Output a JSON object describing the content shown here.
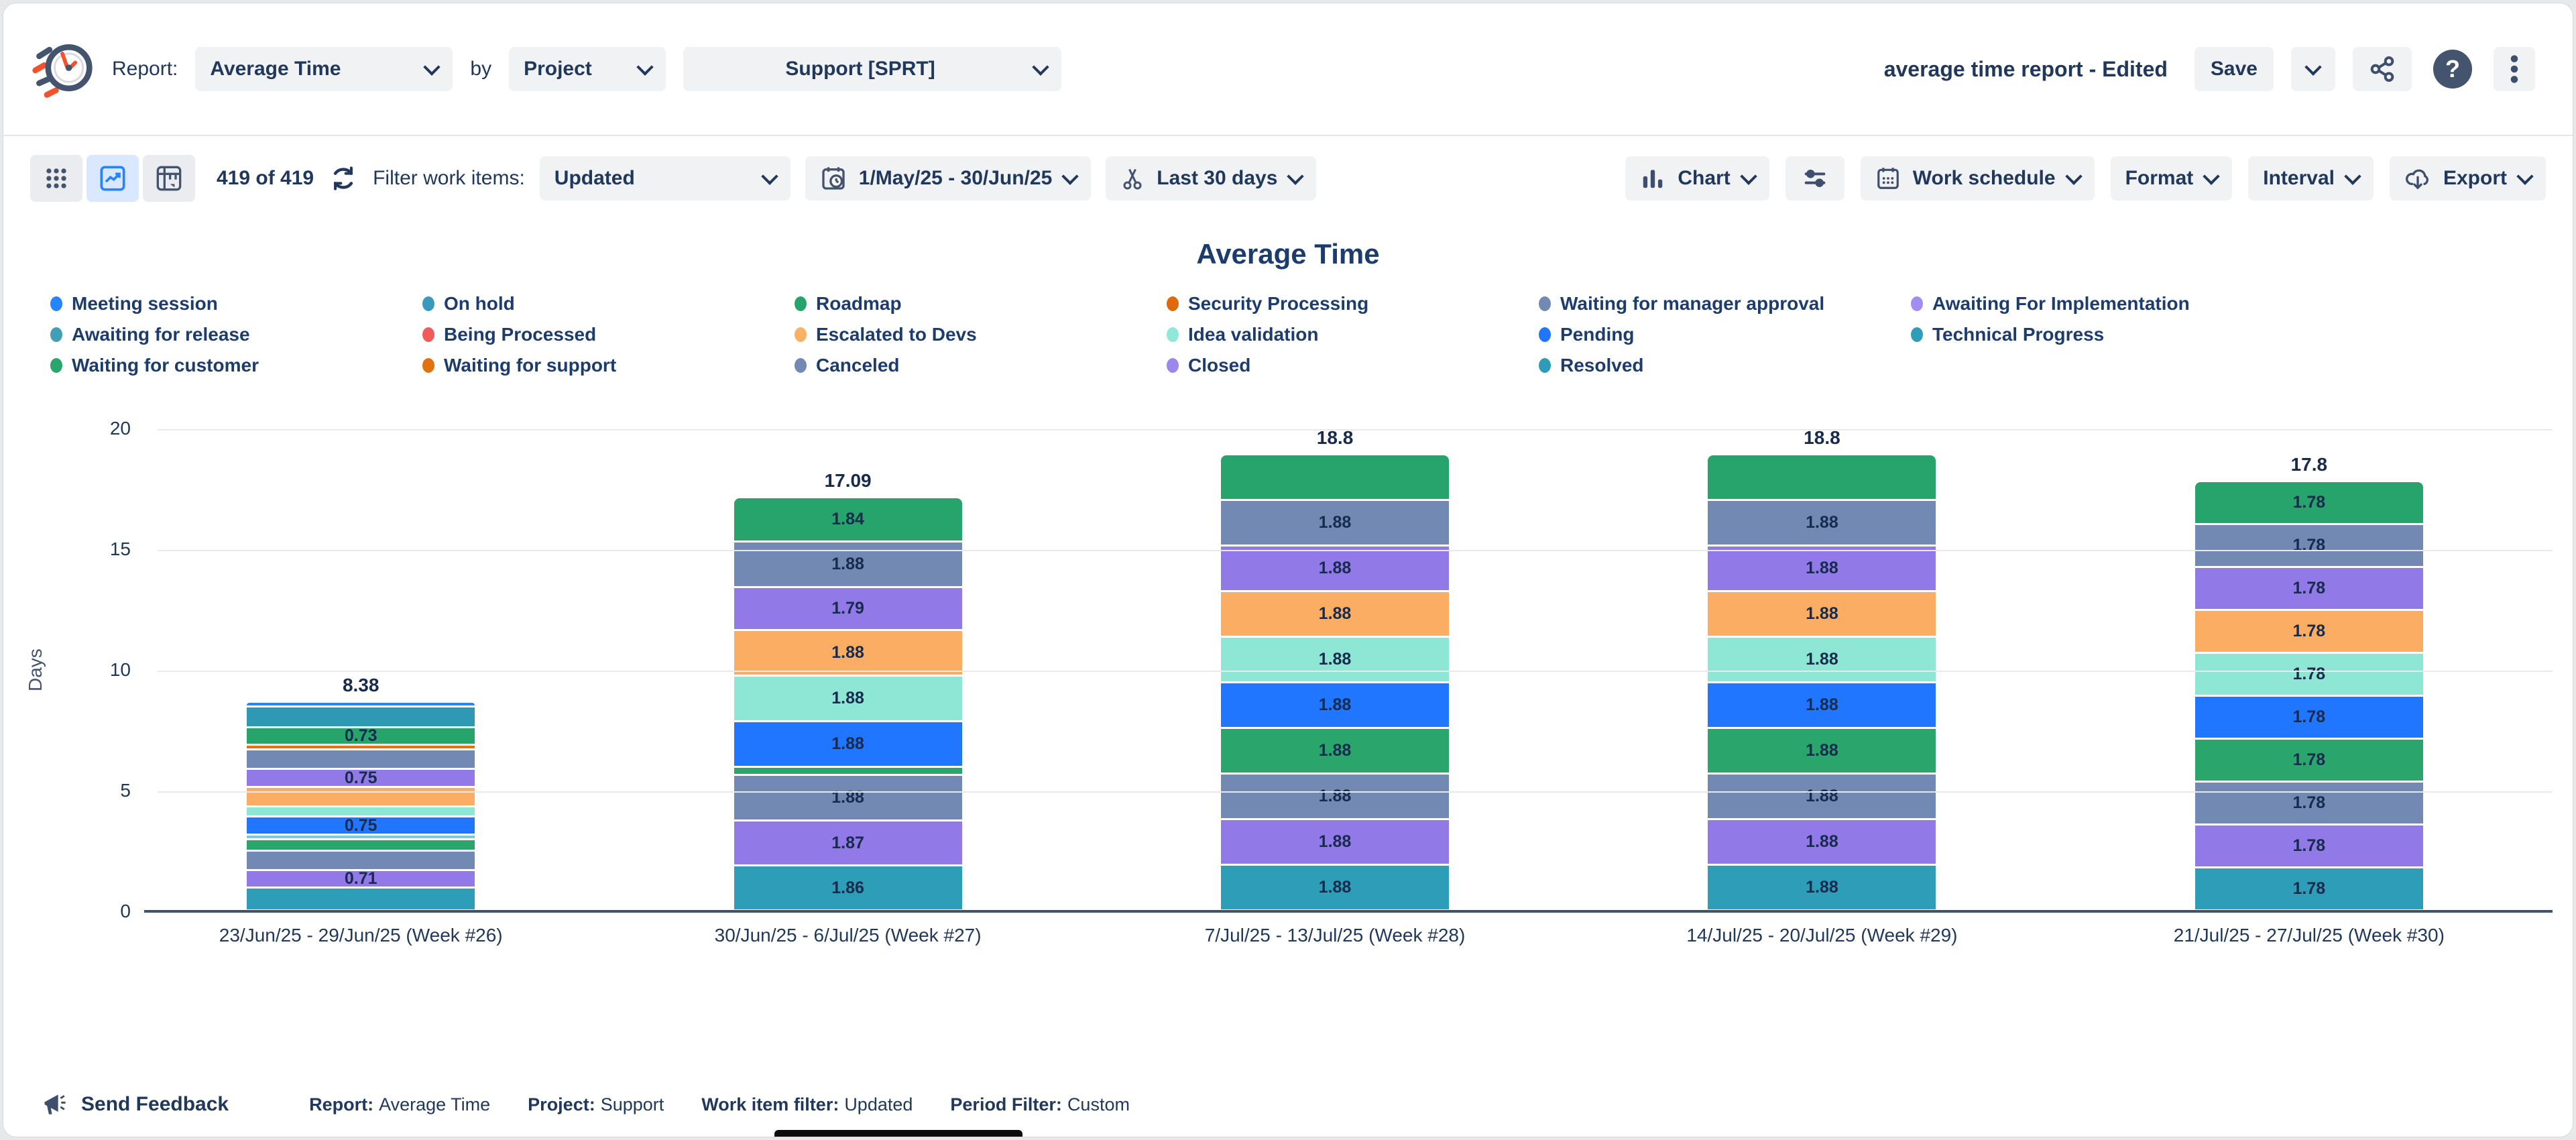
{
  "header": {
    "report_label": "Report:",
    "report_value": "Average Time",
    "by_label": "by",
    "group_value": "Project",
    "project_value": "Support [SPRT]",
    "doc_title": "average time report - Edited",
    "save_label": "Save"
  },
  "toolbar": {
    "count_text": "419 of 419",
    "filter_label": "Filter work items:",
    "filter_value": "Updated",
    "date_range": "1/May/25 - 30/Jun/25",
    "trim_value": "Last 30 days",
    "chart_label": "Chart",
    "work_schedule_label": "Work schedule",
    "format_label": "Format",
    "interval_label": "Interval",
    "export_label": "Export"
  },
  "legend": {
    "items": [
      {
        "label": "Meeting session",
        "color": "#2684ff"
      },
      {
        "label": "On hold",
        "color": "#3a99bd"
      },
      {
        "label": "Roadmap",
        "color": "#27a36c"
      },
      {
        "label": "Security Processing",
        "color": "#e0690b"
      },
      {
        "label": "Waiting for manager approval",
        "color": "#7289b4"
      },
      {
        "label": "Awaiting For Implementation",
        "color": "#a18df2"
      },
      {
        "label": "Awaiting for release",
        "color": "#429eb5"
      },
      {
        "label": "Being Processed",
        "color": "#f15b5b"
      },
      {
        "label": "Escalated to Devs",
        "color": "#fbb163"
      },
      {
        "label": "Idea validation",
        "color": "#8fe8d8"
      },
      {
        "label": "Pending",
        "color": "#2176ff"
      },
      {
        "label": "Technical Progress",
        "color": "#2f9dba"
      },
      {
        "label": "Waiting for customer",
        "color": "#2aa56c"
      },
      {
        "label": "Waiting for support",
        "color": "#e2710f"
      },
      {
        "label": "Canceled",
        "color": "#7289b4"
      },
      {
        "label": "Closed",
        "color": "#9d86ec"
      },
      {
        "label": "Resolved",
        "color": "#2e9cb8"
      }
    ]
  },
  "chart_data": {
    "type": "stacked-bar",
    "title": "Average Time",
    "ylabel": "Days",
    "ylim": [
      0,
      20
    ],
    "yticks": [
      0,
      5,
      10,
      15,
      20
    ],
    "grid": true,
    "legend_position": "top",
    "categories": [
      "23/Jun/25 - 29/Jun/25 (Week #26)",
      "30/Jun/25 - 6/Jul/25 (Week #27)",
      "7/Jul/25 - 13/Jul/25 (Week #28)",
      "14/Jul/25 - 20/Jul/25 (Week #29)",
      "21/Jul/25 - 27/Jul/25 (Week #30)"
    ],
    "totals": [
      "8.38",
      "17.09",
      "18.8",
      "18.8",
      "17.8"
    ],
    "segments_order_note": "segments listed top to bottom of each stack",
    "bars": [
      {
        "category": "23/Jun/25 - 29/Jun/25 (Week #26)",
        "total": "8.38",
        "segments": [
          {
            "status": "Meeting session",
            "color": "#2684ff",
            "value": 0.12,
            "label": ""
          },
          {
            "status": "On hold",
            "color": "#2e98b5",
            "value": 0.85,
            "label": ""
          },
          {
            "status": "Roadmap",
            "color": "#27a36c",
            "value": 0.73,
            "label": "0.73"
          },
          {
            "status": "Security Processing",
            "color": "#e8720e",
            "value": 0.12,
            "label": ""
          },
          {
            "status": "Waiting for manager approval",
            "color": "#7289b4",
            "value": 0.8,
            "label": ""
          },
          {
            "status": "Awaiting For Implementation",
            "color": "#9179e8",
            "value": 0.75,
            "label": "0.75"
          },
          {
            "status": "Escalated to Devs",
            "color": "#fbae63",
            "value": 0.8,
            "label": ""
          },
          {
            "status": "Idea validation",
            "color": "#8ee6d4",
            "value": 0.42,
            "label": ""
          },
          {
            "status": "Pending",
            "color": "#2176ff",
            "value": 0.75,
            "label": "0.75"
          },
          {
            "status": "Technical Progress",
            "color": "#7fc9db",
            "value": 0.12,
            "label": ""
          },
          {
            "status": "Waiting for customer",
            "color": "#2aa56c",
            "value": 0.47,
            "label": ""
          },
          {
            "status": "Canceled",
            "color": "#7289b4",
            "value": 0.8,
            "label": ""
          },
          {
            "status": "Closed",
            "color": "#9179e8",
            "value": 0.71,
            "label": "0.71"
          },
          {
            "status": "Resolved",
            "color": "#2d9db8",
            "value": 0.94,
            "label": ""
          }
        ]
      },
      {
        "category": "30/Jun/25 - 6/Jul/25 (Week #27)",
        "total": "17.09",
        "segments": [
          {
            "status": "Roadmap",
            "color": "#27a36c",
            "value": 1.84,
            "label": "1.84"
          },
          {
            "status": "Waiting for manager approval",
            "color": "#7289b4",
            "value": 1.88,
            "label": "1.88"
          },
          {
            "status": "Awaiting For Implementation",
            "color": "#9179e8",
            "value": 1.79,
            "label": "1.79"
          },
          {
            "status": "Escalated to Devs",
            "color": "#fbae63",
            "value": 1.88,
            "label": "1.88"
          },
          {
            "status": "Idea validation",
            "color": "#8ee6d4",
            "value": 1.88,
            "label": "1.88"
          },
          {
            "status": "Pending",
            "color": "#2176ff",
            "value": 1.88,
            "label": "1.88"
          },
          {
            "status": "Waiting for customer",
            "color": "#2aa56c",
            "value": 0.33,
            "label": ""
          },
          {
            "status": "Canceled",
            "color": "#7289b4",
            "value": 1.88,
            "label": "1.88"
          },
          {
            "status": "Closed",
            "color": "#9179e8",
            "value": 1.87,
            "label": "1.87"
          },
          {
            "status": "Resolved",
            "color": "#2d9db8",
            "value": 1.86,
            "label": "1.86"
          }
        ]
      },
      {
        "category": "7/Jul/25 - 13/Jul/25 (Week #28)",
        "total": "18.8",
        "segments": [
          {
            "status": "Roadmap",
            "color": "#27a36c",
            "value": 1.88,
            "label": ""
          },
          {
            "status": "Waiting for manager approval",
            "color": "#7289b4",
            "value": 1.88,
            "label": "1.88"
          },
          {
            "status": "Awaiting For Implementation",
            "color": "#9179e8",
            "value": 1.88,
            "label": "1.88"
          },
          {
            "status": "Escalated to Devs",
            "color": "#fbae63",
            "value": 1.88,
            "label": "1.88"
          },
          {
            "status": "Idea validation",
            "color": "#8ee6d4",
            "value": 1.88,
            "label": "1.88"
          },
          {
            "status": "Pending",
            "color": "#2176ff",
            "value": 1.88,
            "label": "1.88"
          },
          {
            "status": "Waiting for customer",
            "color": "#2aa56c",
            "value": 1.88,
            "label": "1.88"
          },
          {
            "status": "Canceled",
            "color": "#7289b4",
            "value": 1.88,
            "label": "1.88"
          },
          {
            "status": "Closed",
            "color": "#9179e8",
            "value": 1.88,
            "label": "1.88"
          },
          {
            "status": "Resolved",
            "color": "#2d9db8",
            "value": 1.88,
            "label": "1.88"
          }
        ]
      },
      {
        "category": "14/Jul/25 - 20/Jul/25 (Week #29)",
        "total": "18.8",
        "segments": [
          {
            "status": "Roadmap",
            "color": "#27a36c",
            "value": 1.88,
            "label": ""
          },
          {
            "status": "Waiting for manager approval",
            "color": "#7289b4",
            "value": 1.88,
            "label": "1.88"
          },
          {
            "status": "Awaiting For Implementation",
            "color": "#9179e8",
            "value": 1.88,
            "label": "1.88"
          },
          {
            "status": "Escalated to Devs",
            "color": "#fbae63",
            "value": 1.88,
            "label": "1.88"
          },
          {
            "status": "Idea validation",
            "color": "#8ee6d4",
            "value": 1.88,
            "label": "1.88"
          },
          {
            "status": "Pending",
            "color": "#2176ff",
            "value": 1.88,
            "label": "1.88"
          },
          {
            "status": "Waiting for customer",
            "color": "#2aa56c",
            "value": 1.88,
            "label": "1.88"
          },
          {
            "status": "Canceled",
            "color": "#7289b4",
            "value": 1.88,
            "label": "1.88"
          },
          {
            "status": "Closed",
            "color": "#9179e8",
            "value": 1.88,
            "label": "1.88"
          },
          {
            "status": "Resolved",
            "color": "#2d9db8",
            "value": 1.88,
            "label": "1.88"
          }
        ]
      },
      {
        "category": "21/Jul/25 - 27/Jul/25 (Week #30)",
        "total": "17.8",
        "segments": [
          {
            "status": "Roadmap",
            "color": "#27a36c",
            "value": 1.78,
            "label": "1.78"
          },
          {
            "status": "Waiting for manager approval",
            "color": "#7289b4",
            "value": 1.78,
            "label": "1.78"
          },
          {
            "status": "Awaiting For Implementation",
            "color": "#9179e8",
            "value": 1.78,
            "label": "1.78"
          },
          {
            "status": "Escalated to Devs",
            "color": "#fbae63",
            "value": 1.78,
            "label": "1.78"
          },
          {
            "status": "Idea validation",
            "color": "#8ee6d4",
            "value": 1.78,
            "label": "1.78"
          },
          {
            "status": "Pending",
            "color": "#2176ff",
            "value": 1.78,
            "label": "1.78"
          },
          {
            "status": "Waiting for customer",
            "color": "#2aa56c",
            "value": 1.78,
            "label": "1.78"
          },
          {
            "status": "Canceled",
            "color": "#7289b4",
            "value": 1.78,
            "label": "1.78"
          },
          {
            "status": "Closed",
            "color": "#9179e8",
            "value": 1.78,
            "label": "1.78"
          },
          {
            "status": "Resolved",
            "color": "#2d9db8",
            "value": 1.78,
            "label": "1.78"
          }
        ]
      }
    ]
  },
  "footer": {
    "feedback_label": "Send Feedback",
    "summary": [
      {
        "label": "Report:",
        "value": "Average Time"
      },
      {
        "label": "Project:",
        "value": "Support"
      },
      {
        "label": "Work item filter:",
        "value": "Updated"
      },
      {
        "label": "Period Filter:",
        "value": "Custom"
      }
    ]
  },
  "colors": {
    "text_navy": "#20385c",
    "pill_bg": "#f1f2f4",
    "active_view_bg": "#d9e8ff",
    "accent_blue": "#2684ff",
    "gridline": "#e7e9ed",
    "axis_line": "#3f5270"
  }
}
